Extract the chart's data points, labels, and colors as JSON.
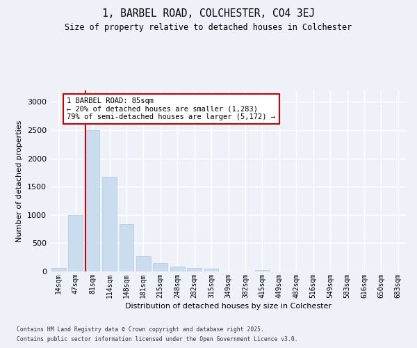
{
  "title1": "1, BARBEL ROAD, COLCHESTER, CO4 3EJ",
  "title2": "Size of property relative to detached houses in Colchester",
  "xlabel": "Distribution of detached houses by size in Colchester",
  "ylabel": "Number of detached properties",
  "bins": [
    "14sqm",
    "47sqm",
    "81sqm",
    "114sqm",
    "148sqm",
    "181sqm",
    "215sqm",
    "248sqm",
    "282sqm",
    "315sqm",
    "349sqm",
    "382sqm",
    "415sqm",
    "449sqm",
    "482sqm",
    "516sqm",
    "549sqm",
    "583sqm",
    "616sqm",
    "650sqm",
    "683sqm"
  ],
  "values": [
    60,
    1000,
    2500,
    1680,
    840,
    270,
    150,
    85,
    65,
    55,
    0,
    0,
    30,
    0,
    0,
    0,
    0,
    0,
    0,
    0,
    0
  ],
  "bar_color": "#c9ddef",
  "bar_edge_color": "#b0c8e0",
  "vline_color": "#cc0000",
  "annotation_text": "1 BARBEL ROAD: 85sqm\n← 20% of detached houses are smaller (1,283)\n79% of semi-detached houses are larger (5,172) →",
  "annotation_box_color": "#ffffff",
  "annotation_box_edge": "#cc0000",
  "ylim": [
    0,
    3200
  ],
  "yticks": [
    0,
    500,
    1000,
    1500,
    2000,
    2500,
    3000
  ],
  "footer1": "Contains HM Land Registry data © Crown copyright and database right 2025.",
  "footer2": "Contains public sector information licensed under the Open Government Licence v3.0.",
  "bg_color": "#eef2f8"
}
